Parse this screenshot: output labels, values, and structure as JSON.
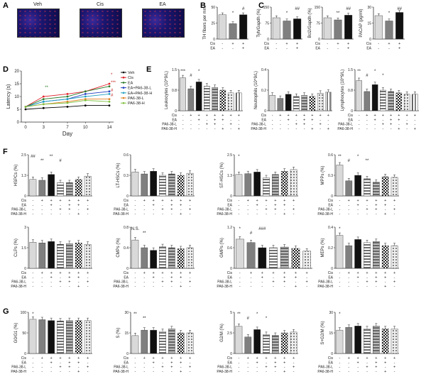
{
  "panel_labels": {
    "A": "A",
    "B": "B",
    "C": "C",
    "D": "D",
    "E": "E",
    "F": "F",
    "G": "G"
  },
  "panelA": {
    "images": [
      {
        "label": "Veh"
      },
      {
        "label": "Cis"
      },
      {
        "label": "EA"
      }
    ]
  },
  "colors": {
    "veh": "#d9d9d9",
    "cis": "#7f7f7f",
    "ea": "#111111",
    "bar_edge": "#333333"
  },
  "condition_rows": {
    "bc": {
      "labels": [
        "Cis",
        "EA"
      ],
      "signs": [
        [
          "-",
          "+",
          "+"
        ],
        [
          "-",
          "-",
          "+"
        ]
      ]
    },
    "e": {
      "labels": [
        "Cis",
        "EA",
        "PA6-38-L",
        "PA6-38-H"
      ],
      "signs": [
        [
          "-",
          "+",
          "+",
          "+",
          "+",
          "+",
          "+",
          "+"
        ],
        [
          "-",
          "-",
          "+",
          "-",
          "+",
          "+",
          "-",
          "-"
        ],
        [
          "-",
          "-",
          "-",
          "+",
          "+",
          "-",
          "+",
          "-"
        ],
        [
          "-",
          "-",
          "-",
          "-",
          "-",
          "+",
          "-",
          "+"
        ]
      ]
    },
    "fg": {
      "labels": [
        "Cis",
        "EA",
        "PA6-38-L",
        "PA6-38-H"
      ],
      "signs": [
        [
          "-",
          "+",
          "+",
          "+",
          "+",
          "+",
          "+"
        ],
        [
          "-",
          "-",
          "+",
          "-",
          "+",
          "+",
          "-"
        ],
        [
          "-",
          "-",
          "-",
          "+",
          "+",
          "-",
          "+"
        ],
        [
          "-",
          "-",
          "-",
          "-",
          "-",
          "+",
          "-"
        ]
      ]
    }
  },
  "chart_data": [
    {
      "id": "B",
      "type": "bar",
      "ylabel": "TH fibers per mm",
      "ylim": [
        0,
        50
      ],
      "values": [
        38,
        24,
        38
      ],
      "sig": [
        "",
        "*",
        "#"
      ]
    },
    {
      "id": "C1",
      "type": "bar",
      "ylabel": "Tyh/Gapdh (%)",
      "ylim": [
        0,
        150
      ],
      "values": [
        100,
        85,
        95
      ],
      "sig": [
        "",
        "*",
        "##"
      ]
    },
    {
      "id": "C2",
      "type": "bar",
      "ylabel": "Bcl2/Gapdh (%)",
      "ylim": [
        0,
        150
      ],
      "values": [
        100,
        90,
        112
      ],
      "sig": [
        "",
        "**",
        "##"
      ]
    },
    {
      "id": "C3",
      "type": "bar",
      "ylabel": "PACAP (pg/ml)",
      "ylim": [
        0,
        30
      ],
      "values": [
        22,
        17,
        25
      ],
      "sig": [
        "",
        "*",
        "##"
      ]
    },
    {
      "id": "D",
      "type": "line",
      "xlabel": "Day",
      "ylabel": "Latency (s)",
      "x": [
        0,
        3,
        7,
        10,
        14
      ],
      "ylim": [
        0,
        20
      ],
      "yticks": [
        0,
        5,
        10,
        15,
        20
      ],
      "series": [
        {
          "name": "Veh",
          "color": "#000000",
          "values": [
            5,
            5.5,
            6,
            6.5,
            6.5
          ]
        },
        {
          "name": "Cis",
          "color": "#e0202a",
          "values": [
            6,
            10,
            11,
            12,
            15
          ]
        },
        {
          "name": "EA",
          "color": "#2a7a2a",
          "values": [
            6,
            9,
            10,
            12,
            14
          ]
        },
        {
          "name": "EA+PA6-38-L",
          "color": "#2040c0",
          "values": [
            6,
            8,
            9,
            11,
            12
          ]
        },
        {
          "name": "EA+PA6-38-H",
          "color": "#20a0c0",
          "values": [
            6,
            8,
            9,
            10,
            11
          ]
        },
        {
          "name": "PA6-38-L",
          "color": "#e08020",
          "values": [
            6,
            7,
            8,
            9,
            9
          ]
        },
        {
          "name": "PA6-38-H",
          "color": "#80c040",
          "values": [
            6,
            7,
            7.5,
            8.5,
            8
          ]
        }
      ],
      "annotations": [
        "**",
        "*",
        "***",
        "#",
        "#"
      ]
    },
    {
      "id": "E1",
      "type": "bar",
      "ylabel": "Leukocytes (10^9/L)",
      "ylim": [
        0,
        1.5
      ],
      "values": [
        1.2,
        0.8,
        1.05,
        0.9,
        0.85,
        0.75,
        0.65,
        0.65
      ],
      "sig": [
        "***",
        "#",
        "*"
      ]
    },
    {
      "id": "E2",
      "type": "bar",
      "ylabel": "Neutrophils (10^9/L)",
      "ylim": [
        0,
        0.4
      ],
      "values": [
        0.15,
        0.12,
        0.16,
        0.14,
        0.15,
        0.14,
        0.17,
        0.18
      ],
      "sig": []
    },
    {
      "id": "E3",
      "type": "bar",
      "ylabel": "Lymphocytes (10^9/L)",
      "ylim": [
        0,
        1.5
      ],
      "values": [
        1.1,
        0.7,
        0.95,
        0.75,
        0.7,
        0.65,
        0.6,
        0.6
      ],
      "sig": [
        "**",
        "#",
        "*",
        "*"
      ]
    },
    {
      "id": "F1",
      "type": "bar",
      "ylabel": "HSPCs (%)",
      "ylim": [
        0,
        2.5
      ],
      "values": [
        1.0,
        0.95,
        1.3,
        0.8,
        0.8,
        1.0,
        1.2
      ],
      "sig": [
        "##",
        "**",
        "**",
        "#"
      ]
    },
    {
      "id": "F2",
      "type": "bar",
      "ylabel": "LT-HSCs (%)",
      "ylim": [
        0,
        0.6
      ],
      "values": [
        0.35,
        0.32,
        0.36,
        0.3,
        0.32,
        0.3,
        0.33
      ],
      "sig": []
    },
    {
      "id": "F3",
      "type": "bar",
      "ylabel": "ST-HSCs (%)",
      "ylim": [
        0,
        2.5
      ],
      "values": [
        1.3,
        1.35,
        1.45,
        1.1,
        1.3,
        1.5,
        1.6
      ],
      "sig": [
        "*"
      ]
    },
    {
      "id": "F4",
      "type": "bar",
      "ylabel": "MPPs (%)",
      "ylim": [
        0,
        0.6
      ],
      "values": [
        0.45,
        0.22,
        0.3,
        0.25,
        0.2,
        0.28,
        0.27
      ],
      "sig": [
        "**",
        "#",
        "*",
        "**"
      ]
    },
    {
      "id": "F5",
      "type": "bar",
      "ylabel": "CLPs (%)",
      "ylim": [
        0,
        3
      ],
      "values": [
        1.9,
        1.85,
        1.95,
        1.75,
        1.8,
        1.85,
        1.75
      ],
      "sig": []
    },
    {
      "id": "F6",
      "type": "bar",
      "ylabel": "CMPs (%)",
      "ylim": [
        0,
        0.8
      ],
      "values": [
        0.55,
        0.4,
        0.35,
        0.42,
        0.4,
        0.38,
        0.4
      ],
      "sig": [
        "N.S.",
        "**"
      ]
    },
    {
      "id": "F7",
      "type": "bar",
      "ylabel": "GMPs (%)",
      "ylim": [
        0,
        1.2
      ],
      "values": [
        0.85,
        0.75,
        0.6,
        0.6,
        0.62,
        0.58,
        0.5
      ],
      "sig": [
        "*",
        "#",
        "###"
      ]
    },
    {
      "id": "F8",
      "type": "bar",
      "ylabel": "MEPs (%)",
      "ylim": [
        0,
        0.4
      ],
      "values": [
        0.32,
        0.22,
        0.28,
        0.25,
        0.26,
        0.22,
        0.22
      ],
      "sig": [
        "*"
      ]
    },
    {
      "id": "G1",
      "type": "bar",
      "ylabel": "G0/G1 (%)",
      "ylim": [
        0,
        100
      ],
      "values": [
        83,
        82,
        80,
        79,
        80,
        80,
        80
      ],
      "sig": [
        "*"
      ]
    },
    {
      "id": "G2",
      "type": "bar",
      "ylabel": "S (%)",
      "ylim": [
        0,
        30
      ],
      "values": [
        13,
        17,
        17,
        16,
        18,
        15,
        15
      ],
      "sig": [
        "**",
        "**"
      ]
    },
    {
      "id": "G3",
      "type": "bar",
      "ylabel": "G2/M (%)",
      "ylim": [
        0,
        5
      ],
      "values": [
        3.3,
        2.0,
        2.9,
        2.3,
        2.2,
        2.5,
        2.6
      ],
      "sig": [
        "**",
        "#",
        "*",
        "*"
      ]
    },
    {
      "id": "G4",
      "type": "bar",
      "ylabel": "S+G2/M (%)",
      "ylim": [
        0,
        30
      ],
      "values": [
        17,
        19,
        20,
        18,
        20,
        18,
        18
      ],
      "sig": [
        "*"
      ]
    }
  ]
}
